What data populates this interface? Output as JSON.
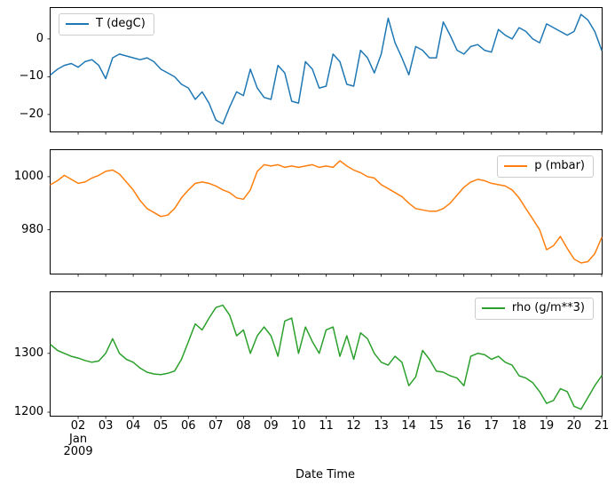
{
  "chart_data": {
    "type": "line",
    "title": "",
    "xlabel": "Date Time",
    "grid": false,
    "background": "#ffffff",
    "xlim": [
      1,
      21
    ],
    "x": [
      1,
      1.25,
      1.5,
      1.75,
      2,
      2.25,
      2.5,
      2.75,
      3,
      3.25,
      3.5,
      3.75,
      4,
      4.25,
      4.5,
      4.75,
      5,
      5.25,
      5.5,
      5.75,
      6,
      6.25,
      6.5,
      6.75,
      7,
      7.25,
      7.5,
      7.75,
      8,
      8.25,
      8.5,
      8.75,
      9,
      9.25,
      9.5,
      9.75,
      10,
      10.25,
      10.5,
      10.75,
      11,
      11.25,
      11.5,
      11.75,
      12,
      12.25,
      12.5,
      12.75,
      13,
      13.25,
      13.5,
      13.75,
      14,
      14.25,
      14.5,
      14.75,
      15,
      15.25,
      15.5,
      15.75,
      16,
      16.25,
      16.5,
      16.75,
      17,
      17.25,
      17.5,
      17.75,
      18,
      18.25,
      18.5,
      18.75,
      19,
      19.25,
      19.5,
      19.75,
      20,
      20.25,
      20.5,
      20.75,
      21
    ],
    "xticks": [
      {
        "v": 2,
        "label": "02",
        "sublabels": [
          "Jan",
          "2009"
        ]
      },
      {
        "v": 3,
        "label": "03"
      },
      {
        "v": 4,
        "label": "04"
      },
      {
        "v": 5,
        "label": "05"
      },
      {
        "v": 6,
        "label": "06"
      },
      {
        "v": 7,
        "label": "07"
      },
      {
        "v": 8,
        "label": "08"
      },
      {
        "v": 9,
        "label": "09"
      },
      {
        "v": 10,
        "label": "10"
      },
      {
        "v": 11,
        "label": "11"
      },
      {
        "v": 12,
        "label": "12"
      },
      {
        "v": 13,
        "label": "13"
      },
      {
        "v": 14,
        "label": "14"
      },
      {
        "v": 15,
        "label": "15"
      },
      {
        "v": 16,
        "label": "16"
      },
      {
        "v": 17,
        "label": "17"
      },
      {
        "v": 18,
        "label": "18"
      },
      {
        "v": 19,
        "label": "19"
      },
      {
        "v": 20,
        "label": "20"
      },
      {
        "v": 21,
        "label": "21"
      }
    ],
    "subplots": [
      {
        "name": "temperature",
        "series_label": "T (degC)",
        "color": "#1f77b4",
        "legend_loc": "upper left",
        "ylim": [
          -24.5,
          8.2
        ],
        "yticks": [
          {
            "v": 0,
            "label": "0"
          },
          {
            "v": -10,
            "label": "−10"
          },
          {
            "v": -20,
            "label": "−20"
          }
        ],
        "values": [
          -9.5,
          -8,
          -7,
          -6.5,
          -7.5,
          -6,
          -5.5,
          -7,
          -10.5,
          -5,
          -4,
          -4.5,
          -5,
          -5.5,
          -5,
          -6,
          -8,
          -9,
          -10,
          -12,
          -13,
          -16,
          -14,
          -17,
          -21.5,
          -22.5,
          -18,
          -14,
          -15,
          -8,
          -13,
          -15.5,
          -16,
          -7,
          -9,
          -16.5,
          -17,
          -6,
          -8,
          -13,
          -12.5,
          -4,
          -6,
          -12,
          -12.5,
          -3,
          -5,
          -9,
          -4,
          5.5,
          -1,
          -5,
          -9.5,
          -2,
          -3,
          -5,
          -5,
          4.5,
          1,
          -3,
          -4,
          -2,
          -1.5,
          -3,
          -3.5,
          2.5,
          1,
          0,
          3,
          2,
          0,
          -1,
          4,
          3,
          2,
          1,
          2,
          6.5,
          5,
          2,
          -3
        ]
      },
      {
        "name": "pressure",
        "series_label": "p (mbar)",
        "color": "#ff7f0e",
        "legend_loc": "upper right",
        "ylim": [
          963.5,
          1010
        ],
        "yticks": [
          {
            "v": 1000,
            "label": "1000"
          },
          {
            "v": 980,
            "label": "980"
          }
        ],
        "values": [
          997,
          998.5,
          1000.5,
          999,
          997.5,
          998,
          999.5,
          1000.5,
          1002,
          1002.5,
          1001,
          998,
          995,
          991,
          988,
          986.5,
          985,
          985.5,
          988,
          992,
          995,
          997.5,
          998,
          997.5,
          996.5,
          995,
          994,
          992,
          991.5,
          995,
          1002,
          1004.5,
          1004,
          1004.5,
          1003.5,
          1004,
          1003.5,
          1004,
          1004.5,
          1003.5,
          1004,
          1003.5,
          1006,
          1004,
          1002.5,
          1001.5,
          1000,
          999.5,
          997,
          995.5,
          994,
          992.5,
          990,
          988,
          987.5,
          987,
          987,
          988,
          990,
          993,
          996,
          998,
          999,
          998.5,
          997.5,
          997,
          996.5,
          995,
          992,
          988,
          984,
          980,
          972.5,
          974,
          977.5,
          973,
          969,
          967.5,
          968,
          971,
          977
        ]
      },
      {
        "name": "rho",
        "series_label": "rho (g/m**3)",
        "color": "#2ca02c",
        "legend_loc": "upper right",
        "ylim": [
          1194,
          1404
        ],
        "yticks": [
          {
            "v": 1300,
            "label": "1300"
          },
          {
            "v": 1200,
            "label": "1200"
          }
        ],
        "values": [
          1315,
          1305,
          1300,
          1295,
          1292,
          1288,
          1285,
          1287,
          1300,
          1325,
          1300,
          1290,
          1285,
          1275,
          1268,
          1265,
          1264,
          1266,
          1270,
          1290,
          1320,
          1350,
          1340,
          1360,
          1378,
          1382,
          1365,
          1330,
          1340,
          1300,
          1330,
          1345,
          1330,
          1295,
          1355,
          1360,
          1300,
          1345,
          1320,
          1300,
          1340,
          1345,
          1295,
          1330,
          1290,
          1335,
          1325,
          1300,
          1285,
          1280,
          1295,
          1285,
          1245,
          1260,
          1305,
          1290,
          1270,
          1268,
          1262,
          1258,
          1245,
          1295,
          1300,
          1298,
          1290,
          1295,
          1285,
          1280,
          1262,
          1258,
          1250,
          1235,
          1215,
          1220,
          1240,
          1235,
          1210,
          1205,
          1225,
          1245,
          1262
        ]
      }
    ]
  }
}
